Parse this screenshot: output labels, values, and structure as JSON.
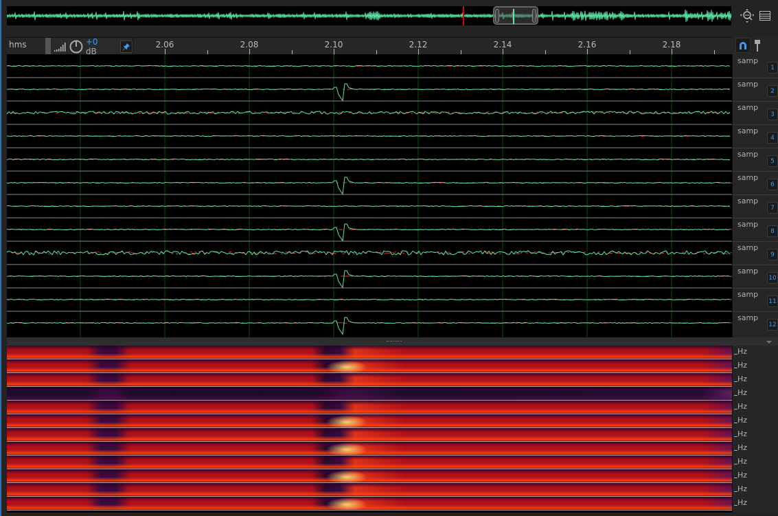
{
  "ruler": {
    "unit": "hms",
    "ticks": [
      "2.06",
      "2.08",
      "2.10",
      "2.12",
      "2.14",
      "2.16",
      "2.18"
    ],
    "gain_prefix": "+0",
    "gain_unit": "dB"
  },
  "channels": [
    {
      "label": "samp",
      "number": "1"
    },
    {
      "label": "samp",
      "number": "2"
    },
    {
      "label": "samp",
      "number": "3"
    },
    {
      "label": "samp",
      "number": "4"
    },
    {
      "label": "samp",
      "number": "5"
    },
    {
      "label": "samp",
      "number": "6"
    },
    {
      "label": "samp",
      "number": "7"
    },
    {
      "label": "samp",
      "number": "8"
    },
    {
      "label": "samp",
      "number": "9"
    },
    {
      "label": "samp",
      "number": "10"
    },
    {
      "label": "samp",
      "number": "11"
    },
    {
      "label": "samp",
      "number": "12"
    }
  ],
  "spectral_unit": "Hz",
  "icons": {
    "zoom": "zoom-navigator-icon",
    "menu": "panel-menu-icon",
    "snap": "magnet-icon",
    "marker": "pin-icon",
    "pin": "pushpin-icon",
    "level": "level-meter-icon",
    "volume": "volume-knob-icon"
  },
  "colors": {
    "waveform": "#5ee6a8",
    "waveform_alt": "#d23a2a",
    "playhead": "#dd0000",
    "accent": "#3d9bf5",
    "grid": "#0b4a0b"
  }
}
